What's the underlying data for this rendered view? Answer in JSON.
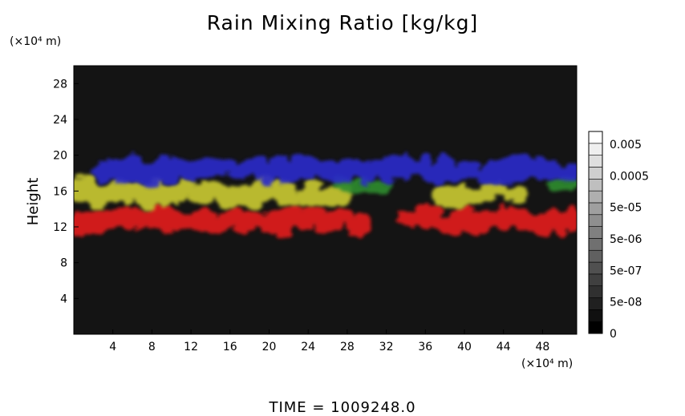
{
  "chart_data": {
    "type": "heatmap",
    "title": "Rain Mixing Ratio [kg/kg]",
    "xlabel": "",
    "ylabel": "Height",
    "x_unit": "(×10⁴ m)",
    "y_unit": "(×10⁴ m)",
    "xlim": [
      0,
      51.5
    ],
    "ylim": [
      0,
      30
    ],
    "x_ticks": [
      4,
      8,
      12,
      16,
      20,
      24,
      28,
      32,
      36,
      40,
      44,
      48
    ],
    "y_ticks": [
      4,
      8,
      12,
      16,
      20,
      24,
      28
    ],
    "colorbar": {
      "labels": [
        "0.005",
        "0.0005",
        "5e-05",
        "5e-06",
        "5e-07",
        "5e-08",
        "0"
      ],
      "levels": 17,
      "color_low": "#000000",
      "color_high": "#ffffff"
    },
    "background_color": "#141414",
    "layers": [
      {
        "color": "#e01a1a",
        "height_range": [
          11,
          14.5
        ],
        "x_extent": [
          [
            0,
            30
          ],
          [
            33.5,
            37
          ],
          [
            37.5,
            51
          ]
        ]
      },
      {
        "color": "#c8c832",
        "height_range": [
          14,
          17.5
        ],
        "x_extent": [
          [
            0,
            27.5
          ],
          [
            37,
            45.5
          ]
        ]
      },
      {
        "color": "#2e8b2e",
        "height_range": [
          15.5,
          17.5
        ],
        "x_extent": [
          [
            27,
            31.5
          ],
          [
            49,
            51
          ]
        ]
      },
      {
        "color": "#2c2cc8",
        "height_range": [
          16.5,
          20
        ],
        "x_extent": [
          [
            2.5,
            51
          ]
        ]
      }
    ]
  },
  "footer": {
    "time_label": "TIME = 1009248.0"
  }
}
